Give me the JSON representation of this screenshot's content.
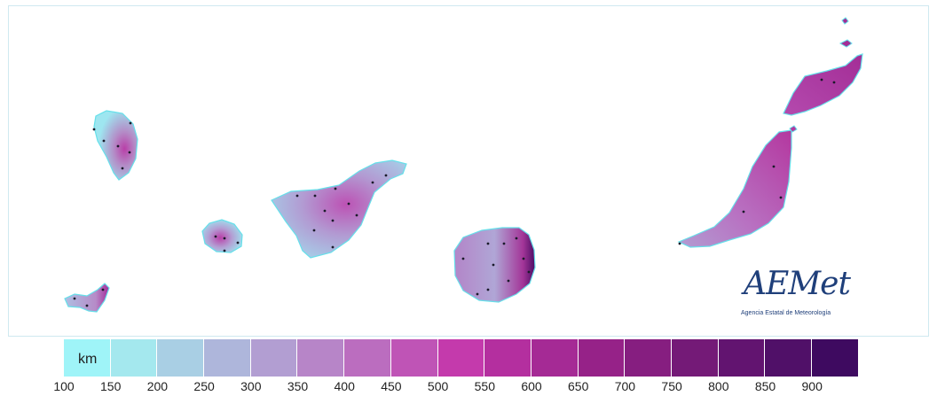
{
  "logo": {
    "wordmark": "AEMet",
    "agency": "Agencia Estatal de Meteorología"
  },
  "legend": {
    "unit": "km",
    "labels": [
      "100",
      "150",
      "200",
      "250",
      "300",
      "350",
      "400",
      "450",
      "500",
      "550",
      "600",
      "650",
      "700",
      "750",
      "800",
      "850",
      "900"
    ],
    "colors": [
      "#9ff4f8",
      "#a4e8ee",
      "#a9cfe4",
      "#aeb6db",
      "#b29ed2",
      "#b785c8",
      "#bb6dbf",
      "#bf54b6",
      "#c43aac",
      "#b42f9f",
      "#a52a95",
      "#962288",
      "#861e80",
      "#741a77",
      "#621470",
      "#501068",
      "#3e0a60"
    ]
  },
  "map_colors": {
    "coast": "#66e0ea",
    "low": "#9ee6f0",
    "mid": "#b48ac6",
    "high": "#a22f96",
    "very_high": "#5a106c"
  }
}
